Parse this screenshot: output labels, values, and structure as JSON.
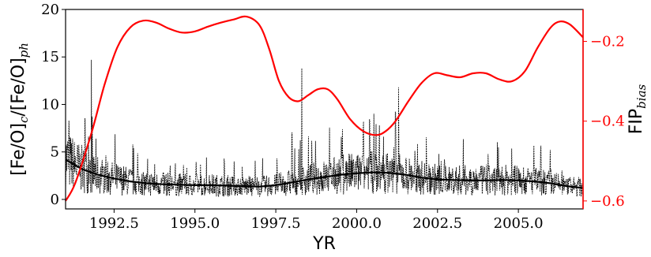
{
  "chart_data": {
    "type": "line",
    "xlabel": "YR",
    "ylabel_left": {
      "main": "[Fe/O]",
      "sub1": "c",
      "mid": "/[Fe/O]",
      "sub2": "ph"
    },
    "ylabel_right": {
      "main": "FIP",
      "sub": "bias"
    },
    "xlim": [
      1991.0,
      2007.0
    ],
    "ylim_left": [
      -1,
      20
    ],
    "ylim_right": [
      -0.62,
      -0.12
    ],
    "xticks": [
      1992.5,
      1995.0,
      1997.5,
      2000.0,
      2002.5,
      2005.0
    ],
    "xtick_labels": [
      "1992.5",
      "1995.0",
      "1997.5",
      "2000.0",
      "2002.5",
      "2005.0"
    ],
    "yticks_left": [
      0,
      5,
      10,
      15,
      20
    ],
    "ytick_labels_left": [
      "0",
      "5",
      "10",
      "15",
      "20"
    ],
    "yticks_right": [
      -0.6,
      -0.4,
      -0.2
    ],
    "ytick_labels_right": [
      "−0.6",
      "−0.4",
      "−0.2"
    ],
    "grid": false,
    "colors": {
      "data": "#000000",
      "fip": "#ff0000",
      "axis_right": "#ff0000"
    },
    "series": [
      {
        "axis": "right",
        "style": "solid",
        "x": [
          1991.0,
          1991.3,
          1991.8,
          1992.2,
          1992.6,
          1993.0,
          1993.4,
          1993.8,
          1994.2,
          1994.6,
          1995.0,
          1995.4,
          1995.8,
          1996.2,
          1996.6,
          1997.0,
          1997.3,
          1997.6,
          1997.9,
          1998.2,
          1998.5,
          1998.8,
          1999.1,
          1999.4,
          1999.8,
          2000.2,
          2000.6,
          2000.9,
          2001.2,
          2001.6,
          2002.0,
          2002.4,
          2002.8,
          2003.2,
          2003.6,
          2004.0,
          2004.4,
          2004.8,
          2005.2,
          2005.6,
          2006.0,
          2006.3,
          2006.6,
          2007.0
        ],
        "values": [
          -0.6,
          -0.555,
          -0.43,
          -0.31,
          -0.215,
          -0.165,
          -0.148,
          -0.153,
          -0.168,
          -0.178,
          -0.175,
          -0.163,
          -0.153,
          -0.145,
          -0.138,
          -0.16,
          -0.22,
          -0.3,
          -0.34,
          -0.35,
          -0.335,
          -0.32,
          -0.32,
          -0.345,
          -0.395,
          -0.425,
          -0.435,
          -0.425,
          -0.4,
          -0.35,
          -0.305,
          -0.28,
          -0.285,
          -0.29,
          -0.28,
          -0.28,
          -0.295,
          -0.3,
          -0.275,
          -0.215,
          -0.165,
          -0.15,
          -0.158,
          -0.19
        ]
      },
      {
        "axis": "left",
        "style": "smooth",
        "x": [
          1991.0,
          1991.5,
          1992.0,
          1992.5,
          1993.0,
          1993.5,
          1994.0,
          1994.5,
          1995.0,
          1995.5,
          1996.0,
          1996.5,
          1997.0,
          1997.5,
          1998.0,
          1998.5,
          1999.0,
          1999.5,
          2000.0,
          2000.5,
          2001.0,
          2001.5,
          2002.0,
          2002.5,
          2003.0,
          2003.5,
          2004.0,
          2004.5,
          2005.0,
          2005.5,
          2006.0,
          2006.5,
          2007.0
        ],
        "values": [
          4.2,
          3.2,
          2.6,
          2.2,
          1.9,
          1.7,
          1.6,
          1.55,
          1.5,
          1.5,
          1.45,
          1.4,
          1.35,
          1.5,
          1.8,
          2.1,
          2.35,
          2.6,
          2.75,
          2.85,
          2.8,
          2.6,
          2.3,
          2.1,
          2.05,
          2.0,
          2.0,
          2.05,
          2.0,
          1.9,
          1.7,
          1.4,
          1.2
        ]
      }
    ],
    "noisy_series": {
      "axis": "left",
      "style": "dashed",
      "spikes": [
        {
          "x": 1991.8,
          "y": 14.7
        },
        {
          "x": 1991.6,
          "y": 8.5
        },
        {
          "x": 1991.1,
          "y": 8.3
        },
        {
          "x": 1998.3,
          "y": 13.8
        },
        {
          "x": 2001.3,
          "y": 11.8
        },
        {
          "x": 2001.2,
          "y": 9.2
        },
        {
          "x": 2000.4,
          "y": 8.4
        },
        {
          "x": 1998.0,
          "y": 7.0
        },
        {
          "x": 2000.7,
          "y": 7.8
        }
      ]
    }
  }
}
